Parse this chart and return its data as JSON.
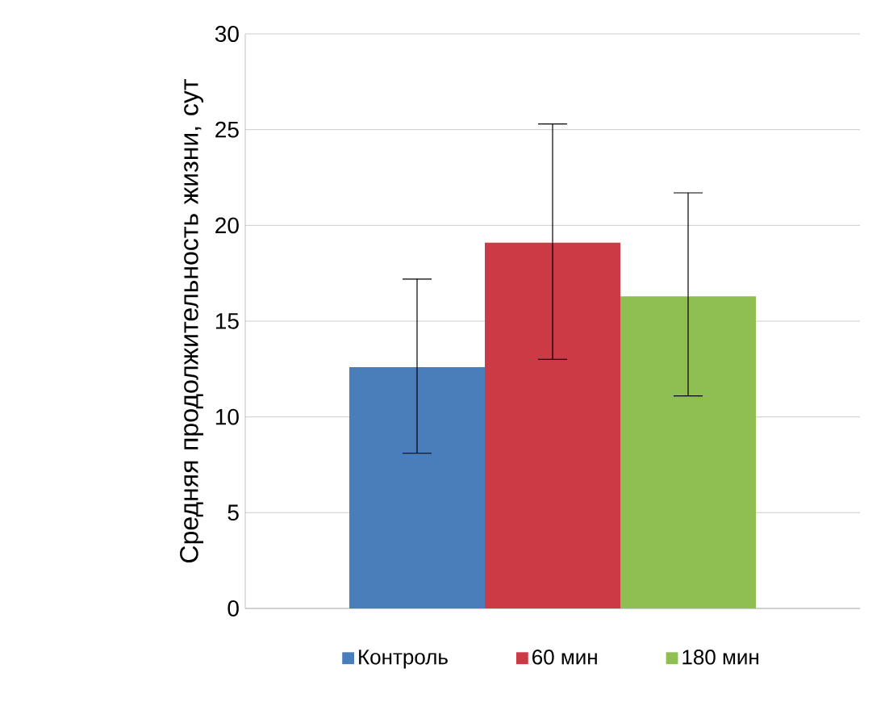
{
  "chart_data": {
    "type": "bar",
    "ylabel": "Средняя продолжительность жизни, сут",
    "categories": [
      null
    ],
    "series": [
      {
        "name": "Контроль",
        "color": "#4a7ebb",
        "values": [
          12.6
        ],
        "errors": [
          [
            8.1,
            17.2
          ]
        ]
      },
      {
        "name": "60 мин",
        "color": "#cc3a45",
        "values": [
          19.1
        ],
        "errors": [
          [
            13.0,
            25.3
          ]
        ]
      },
      {
        "name": "180 мин",
        "color": "#8fbe53",
        "values": [
          16.3
        ],
        "errors": [
          [
            11.1,
            21.7
          ]
        ]
      }
    ],
    "ylim": [
      0,
      30
    ],
    "yticks": [
      0,
      5,
      10,
      15,
      20,
      25,
      30
    ],
    "grid": "y",
    "legend": "bottom"
  }
}
